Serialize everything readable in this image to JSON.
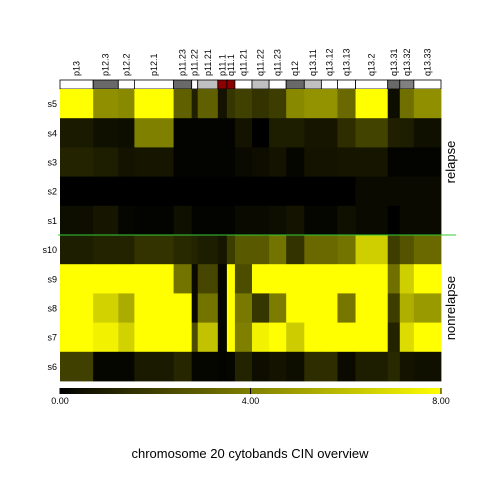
{
  "chart_data": {
    "type": "heatmap",
    "title": "chromosome 20 cytobands CIN overview",
    "x_labels": [
      "p13",
      "p12.3",
      "p12.2",
      "p12.1",
      "p11.23",
      "p11.22",
      "p11.21",
      "p11.1",
      "q11.1",
      "q11.21",
      "q11.22",
      "q11.23",
      "q12",
      "q13.11",
      "q13.12",
      "q13.13",
      "q13.2",
      "q13.31",
      "q13.32",
      "q13.33"
    ],
    "band_colors": [
      "white",
      "dimgray",
      "white",
      "white",
      "dimgray",
      "white",
      "silver",
      "darkred",
      "darkred",
      "white",
      "silver",
      "white",
      "dimgray",
      "silver",
      "white",
      "white",
      "white",
      "dimgray",
      "gray",
      "white"
    ],
    "x_widths": [
      33,
      25,
      16,
      39,
      18,
      6,
      20,
      9,
      8,
      17,
      17,
      17,
      18,
      17,
      16,
      18,
      32,
      12,
      14,
      27
    ],
    "groups": [
      {
        "name": "relapse",
        "rows": [
          "s5",
          "s4",
          "s3",
          "s2",
          "s1"
        ]
      },
      {
        "name": "nonrelapse",
        "rows": [
          "s10",
          "s9",
          "s8",
          "s7",
          "s6"
        ]
      }
    ],
    "rows": [
      "s5",
      "s4",
      "s3",
      "s2",
      "s1",
      "s10",
      "s9",
      "s8",
      "s7",
      "s6"
    ],
    "values": [
      [
        8.0,
        4.5,
        4.3,
        8.0,
        3.0,
        1.0,
        3.0,
        0.6,
        1.7,
        2.0,
        1.6,
        1.9,
        4.3,
        4.6,
        4.6,
        3.3,
        8.0,
        0.4,
        3.5,
        4.5
      ],
      [
        0.8,
        0.5,
        0.4,
        4.0,
        0.1,
        0.1,
        0.1,
        0.1,
        0.1,
        0.6,
        0.0,
        0.9,
        0.9,
        0.7,
        0.7,
        1.4,
        2.1,
        1.0,
        0.9,
        0.5
      ],
      [
        1.1,
        0.9,
        0.6,
        0.7,
        0.1,
        0.1,
        0.1,
        0.1,
        0.1,
        0.3,
        0.4,
        0.6,
        0.2,
        0.6,
        0.6,
        0.7,
        0.7,
        0.1,
        0.1,
        0.1
      ],
      [
        0.0,
        0.0,
        0.0,
        0.0,
        0.0,
        0.0,
        0.0,
        0.0,
        0.0,
        0.0,
        0.0,
        0.0,
        0.0,
        0.0,
        0.0,
        0.0,
        0.3,
        0.3,
        0.3,
        0.3
      ],
      [
        0.4,
        0.7,
        0.2,
        0.1,
        0.5,
        0.1,
        0.1,
        0.1,
        0.1,
        0.3,
        0.3,
        0.4,
        0.6,
        0.2,
        0.2,
        0.5,
        0.3,
        0.0,
        0.3,
        0.3
      ],
      [
        0.9,
        1.1,
        1.1,
        1.6,
        1.3,
        1.1,
        0.9,
        0.7,
        1.9,
        2.8,
        2.8,
        3.6,
        1.6,
        3.3,
        3.3,
        3.6,
        6.5,
        1.9,
        2.6,
        3.3
      ],
      [
        8.0,
        8.0,
        8.0,
        8.0,
        3.6,
        0.3,
        2.2,
        0.2,
        8.0,
        2.4,
        8.0,
        8.0,
        8.0,
        8.0,
        8.0,
        8.0,
        8.0,
        3.5,
        6.5,
        8.0
      ],
      [
        8.0,
        6.6,
        5.4,
        8.0,
        8.0,
        0.3,
        3.6,
        0.2,
        8.0,
        3.8,
        1.7,
        3.9,
        8.0,
        8.0,
        8.0,
        3.7,
        8.0,
        1.9,
        5.5,
        4.8
      ],
      [
        8.0,
        7.6,
        6.6,
        8.0,
        8.0,
        2.4,
        6.1,
        0.2,
        8.0,
        4.0,
        7.6,
        8.0,
        6.4,
        8.0,
        8.0,
        8.0,
        8.0,
        1.1,
        6.9,
        8.0
      ],
      [
        2.0,
        0.2,
        0.2,
        0.8,
        1.2,
        0.2,
        0.2,
        0.1,
        0.2,
        1.1,
        0.4,
        0.6,
        0.4,
        1.4,
        1.4,
        0.3,
        0.9,
        1.3,
        0.6,
        0.5
      ]
    ],
    "color_scale": {
      "min": 0.0,
      "mid": 4.0,
      "max": 8.0,
      "colors": [
        "#000000",
        "#ffff00"
      ]
    },
    "colorbar_ticks": [
      "0.00",
      "4.00",
      "8.00"
    ],
    "divider_color": "#33cc33"
  }
}
